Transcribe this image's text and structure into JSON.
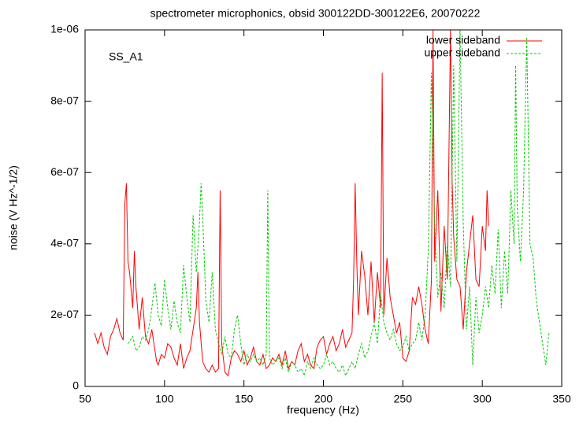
{
  "chart_data": {
    "type": "line",
    "title": "spectrometer microphonics, obsid 300122DD-300122E6, 20070222",
    "x_label": "frequency (Hz)",
    "y_label": "noise (V Hz^-1/2)",
    "annotation": "SS_A1",
    "legend": "top right",
    "xlim": [
      50,
      350
    ],
    "xticks": [
      50,
      100,
      150,
      200,
      250,
      300,
      350
    ],
    "ylim": [
      0,
      1e-06
    ],
    "yticks": [
      0,
      {
        "value": 2e-07,
        "label": "2e-07"
      },
      {
        "value": 4e-07,
        "label": "4e-07"
      },
      {
        "value": 6e-07,
        "label": "6e-07"
      },
      {
        "value": 8e-07,
        "label": "8e-07"
      },
      {
        "value": 1e-06,
        "label": "1e-06"
      }
    ],
    "series": [
      {
        "name": "lower sideband",
        "color": "#ff0000",
        "dashed": false,
        "x": [
          56,
          58,
          60,
          62,
          64,
          66,
          68,
          70,
          72,
          74,
          75,
          76,
          77,
          78,
          80,
          81,
          82,
          84,
          86,
          88,
          90,
          92,
          94,
          95,
          96,
          98,
          100,
          102,
          104,
          106,
          108,
          110,
          112,
          114,
          116,
          118,
          120,
          121,
          122,
          124,
          126,
          128,
          130,
          132,
          134,
          135,
          136,
          138,
          140,
          142,
          144,
          146,
          148,
          150,
          152,
          154,
          156,
          158,
          160,
          162,
          164,
          166,
          168,
          170,
          172,
          174,
          176,
          178,
          180,
          182,
          184,
          186,
          188,
          190,
          192,
          194,
          196,
          198,
          200,
          202,
          204,
          206,
          208,
          210,
          212,
          214,
          216,
          218,
          219,
          220,
          221,
          222,
          224,
          226,
          228,
          230,
          232,
          234,
          236,
          237,
          238,
          240,
          242,
          244,
          246,
          248,
          250,
          252,
          254,
          256,
          258,
          260,
          262,
          264,
          266,
          268,
          269,
          270,
          272,
          274,
          276,
          278,
          280,
          281,
          282,
          284,
          286,
          288,
          290,
          292,
          294,
          296,
          298,
          300,
          302,
          303,
          304
        ],
        "values": [
          1.5e-07,
          1.2e-07,
          1.5e-07,
          1.1e-07,
          9e-08,
          1.4e-07,
          1.6e-07,
          1.9e-07,
          1.5e-07,
          1.3e-07,
          5.1e-07,
          5.7e-07,
          3.5e-07,
          3.2e-07,
          2.2e-07,
          3.8e-07,
          2.8e-07,
          1.6e-07,
          2.5e-07,
          1.4e-07,
          1.2e-07,
          1.6e-07,
          1e-07,
          7e-08,
          6e-08,
          9e-08,
          8e-08,
          1.2e-07,
          1.1e-07,
          8e-08,
          6e-08,
          1.2e-07,
          5e-08,
          8e-08,
          1e-07,
          1.6e-07,
          2.2e-07,
          3.2e-07,
          1.8e-07,
          7e-08,
          5e-08,
          4e-08,
          6e-08,
          4e-08,
          5e-08,
          5.5e-07,
          1.2e-07,
          4e-08,
          3e-08,
          8e-08,
          1e-07,
          9e-08,
          7e-08,
          1e-07,
          6e-08,
          8e-08,
          1.1e-07,
          7e-08,
          6e-08,
          9e-08,
          5e-08,
          6e-08,
          8e-08,
          7e-08,
          9e-08,
          6e-08,
          1e-07,
          5e-08,
          7e-08,
          6e-08,
          1e-07,
          1.2e-07,
          7e-08,
          9e-08,
          6e-08,
          5e-08,
          1.1e-07,
          1.3e-07,
          1.4e-07,
          9e-08,
          1.2e-07,
          1.4e-07,
          1e-07,
          1.2e-07,
          1.6e-07,
          1.1e-07,
          1.3e-07,
          1.5e-07,
          3e-07,
          5.7e-07,
          3.5e-07,
          2e-07,
          3.8e-07,
          3.1e-07,
          2e-07,
          3.5e-07,
          1.8e-07,
          3.2e-07,
          2.2e-07,
          8.8e-07,
          2e-07,
          3.6e-07,
          2.5e-07,
          2e-07,
          1.5e-07,
          1.8e-07,
          8e-08,
          7e-08,
          1e-07,
          2.5e-07,
          2.3e-07,
          2.8e-07,
          2.3e-07,
          1.6e-07,
          1.2e-07,
          3e-07,
          1e-06,
          3.5e-07,
          5.5e-07,
          2.1e-07,
          4.5e-07,
          3e-07,
          1e-06,
          5.8e-07,
          4.2e-07,
          3e-07,
          2.8e-07,
          1.6e-07,
          3.2e-07,
          4e-07,
          4.8e-07,
          3e-07,
          2.8e-07,
          4.5e-07,
          3.8e-07,
          5.5e-07,
          4.5e-07
        ]
      },
      {
        "name": "upper sideband",
        "color": "#00cc00",
        "dashed": true,
        "x": [
          77,
          80,
          82,
          84,
          86,
          88,
          90,
          92,
          94,
          96,
          98,
          100,
          102,
          104,
          106,
          108,
          110,
          112,
          114,
          116,
          118,
          120,
          122,
          123,
          124,
          126,
          128,
          130,
          132,
          134,
          136,
          138,
          140,
          142,
          144,
          146,
          148,
          150,
          152,
          154,
          156,
          158,
          160,
          162,
          164,
          165,
          166,
          168,
          170,
          172,
          174,
          176,
          178,
          180,
          182,
          184,
          186,
          188,
          190,
          192,
          194,
          196,
          198,
          200,
          202,
          204,
          206,
          208,
          210,
          212,
          214,
          216,
          218,
          220,
          222,
          224,
          226,
          228,
          230,
          232,
          234,
          236,
          238,
          240,
          242,
          244,
          246,
          248,
          250,
          252,
          254,
          256,
          258,
          260,
          262,
          264,
          266,
          268,
          270,
          272,
          274,
          276,
          278,
          280,
          282,
          284,
          286,
          288,
          290,
          292,
          294,
          296,
          298,
          300,
          302,
          304,
          306,
          308,
          310,
          312,
          314,
          316,
          318,
          320,
          321,
          322,
          324,
          326,
          328,
          330,
          332,
          334,
          336,
          338,
          340,
          342
        ],
        "values": [
          1.2e-07,
          1.4e-07,
          1e-07,
          1.1e-07,
          1.4e-07,
          1.3e-07,
          1.6e-07,
          2.2e-07,
          2.9e-07,
          2e-07,
          1.7e-07,
          3e-07,
          2.2e-07,
          1.6e-07,
          2.4e-07,
          1.8e-07,
          1.5e-07,
          3.4e-07,
          2.5e-07,
          1.8e-07,
          4.8e-07,
          3.2e-07,
          4.6e-07,
          5.7e-07,
          4.8e-07,
          2.4e-07,
          1.8e-07,
          3.2e-07,
          1.6e-07,
          1.2e-07,
          9e-08,
          1.4e-07,
          9e-08,
          8e-08,
          1.6e-07,
          2e-07,
          1.2e-07,
          6e-08,
          9e-08,
          7e-08,
          9e-08,
          7e-08,
          8e-08,
          6e-08,
          9e-08,
          5.5e-07,
          8e-08,
          6e-08,
          7e-08,
          8e-08,
          5e-08,
          8e-08,
          4e-08,
          7e-08,
          6e-08,
          4e-08,
          5e-08,
          3e-08,
          7e-08,
          5e-08,
          8e-08,
          6e-08,
          5e-08,
          6e-08,
          9e-08,
          6e-08,
          7e-08,
          5e-08,
          4e-08,
          6e-08,
          3e-08,
          5e-08,
          7e-08,
          5e-08,
          9e-08,
          1.2e-07,
          8e-08,
          1e-07,
          1.4e-07,
          1.8e-07,
          1.2e-07,
          2.6e-07,
          1.8e-07,
          1.5e-07,
          1.3e-07,
          1.6e-07,
          1.2e-07,
          1e-07,
          1.1e-07,
          1.4e-07,
          1e-07,
          1.2e-07,
          1.3e-07,
          1.8e-07,
          1.3e-07,
          2e-07,
          3.8e-07,
          8.8e-07,
          4.5e-07,
          2.5e-07,
          3.2e-07,
          2.2e-07,
          4e-07,
          2.8e-07,
          9e-07,
          3.5e-07,
          1e-06,
          4.6e-07,
          1.6e-07,
          2.8e-07,
          6e-08,
          2.5e-07,
          1.5e-07,
          2e-07,
          2.8e-07,
          2.2e-07,
          3.4e-07,
          2.6e-07,
          4.4e-07,
          2.2e-07,
          3.8e-07,
          2.6e-07,
          5.5e-07,
          4e-07,
          9e-07,
          5e-07,
          3.5e-07,
          5.5e-07,
          9.8e-07,
          4e-07,
          3.6e-07,
          2.4e-07,
          1.8e-07,
          1.2e-07,
          6e-08,
          1.5e-07
        ]
      }
    ]
  }
}
